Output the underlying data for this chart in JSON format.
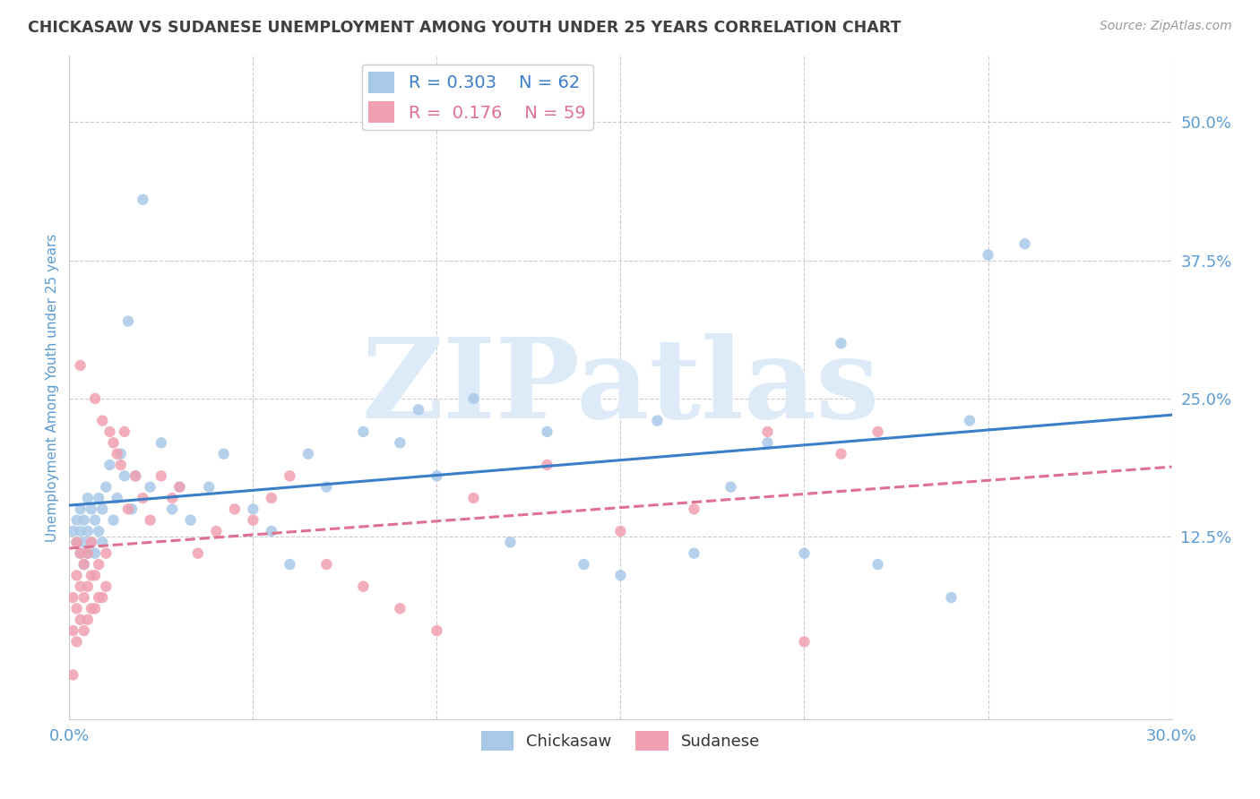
{
  "title": "CHICKASAW VS SUDANESE UNEMPLOYMENT AMONG YOUTH UNDER 25 YEARS CORRELATION CHART",
  "source": "Source: ZipAtlas.com",
  "ylabel": "Unemployment Among Youth under 25 years",
  "xlim": [
    0.0,
    0.3
  ],
  "ylim": [
    -0.04,
    0.56
  ],
  "yticks": [
    0.125,
    0.25,
    0.375,
    0.5
  ],
  "ytick_labels": [
    "12.5%",
    "25.0%",
    "37.5%",
    "50.0%"
  ],
  "xticks": [
    0.0,
    0.05,
    0.1,
    0.15,
    0.2,
    0.25,
    0.3
  ],
  "xtick_labels": [
    "0.0%",
    "",
    "",
    "",
    "",
    "",
    "30.0%"
  ],
  "legend_series": [
    {
      "label": "Chickasaw",
      "R": "0.303",
      "N": "62",
      "color": "#A8C8E8",
      "line_color": "#3A7DC9",
      "line_style": "-"
    },
    {
      "label": "Sudanese",
      "R": "0.176",
      "N": "59",
      "color": "#F0A0B0",
      "line_color": "#E07090",
      "line_style": "--"
    }
  ],
  "watermark": "ZIPatlas",
  "watermark_color": "#DDEAF8",
  "background_color": "#FFFFFF",
  "grid_color": "#CCCCCC",
  "axis_label_color": "#5B9BD5",
  "tick_label_color": "#5B9BD5",
  "title_color": "#404040",
  "chickasaw_x": [
    0.001,
    0.002,
    0.002,
    0.003,
    0.003,
    0.003,
    0.004,
    0.004,
    0.004,
    0.005,
    0.005,
    0.005,
    0.006,
    0.006,
    0.007,
    0.007,
    0.008,
    0.008,
    0.009,
    0.009,
    0.01,
    0.011,
    0.012,
    0.013,
    0.014,
    0.015,
    0.016,
    0.017,
    0.018,
    0.02,
    0.022,
    0.025,
    0.028,
    0.03,
    0.033,
    0.038,
    0.042,
    0.05,
    0.055,
    0.06,
    0.065,
    0.07,
    0.08,
    0.09,
    0.095,
    0.1,
    0.11,
    0.12,
    0.13,
    0.14,
    0.15,
    0.16,
    0.17,
    0.18,
    0.19,
    0.2,
    0.21,
    0.22,
    0.24,
    0.245,
    0.25,
    0.26
  ],
  "chickasaw_y": [
    0.13,
    0.12,
    0.14,
    0.11,
    0.13,
    0.15,
    0.1,
    0.12,
    0.14,
    0.11,
    0.13,
    0.16,
    0.12,
    0.15,
    0.11,
    0.14,
    0.13,
    0.16,
    0.12,
    0.15,
    0.17,
    0.19,
    0.14,
    0.16,
    0.2,
    0.18,
    0.32,
    0.15,
    0.18,
    0.43,
    0.17,
    0.21,
    0.15,
    0.17,
    0.14,
    0.17,
    0.2,
    0.15,
    0.13,
    0.1,
    0.2,
    0.17,
    0.22,
    0.21,
    0.24,
    0.18,
    0.25,
    0.12,
    0.22,
    0.1,
    0.09,
    0.23,
    0.11,
    0.17,
    0.21,
    0.11,
    0.3,
    0.1,
    0.07,
    0.23,
    0.38,
    0.39
  ],
  "sudanese_x": [
    0.001,
    0.001,
    0.001,
    0.002,
    0.002,
    0.002,
    0.002,
    0.003,
    0.003,
    0.003,
    0.003,
    0.004,
    0.004,
    0.004,
    0.005,
    0.005,
    0.005,
    0.006,
    0.006,
    0.006,
    0.007,
    0.007,
    0.007,
    0.008,
    0.008,
    0.009,
    0.009,
    0.01,
    0.01,
    0.011,
    0.012,
    0.013,
    0.014,
    0.015,
    0.016,
    0.018,
    0.02,
    0.022,
    0.025,
    0.028,
    0.03,
    0.035,
    0.04,
    0.045,
    0.05,
    0.055,
    0.06,
    0.07,
    0.08,
    0.09,
    0.1,
    0.11,
    0.13,
    0.15,
    0.17,
    0.19,
    0.2,
    0.21,
    0.22
  ],
  "sudanese_y": [
    0.0,
    0.04,
    0.07,
    0.03,
    0.06,
    0.09,
    0.12,
    0.05,
    0.08,
    0.11,
    0.28,
    0.04,
    0.07,
    0.1,
    0.05,
    0.08,
    0.11,
    0.06,
    0.09,
    0.12,
    0.06,
    0.09,
    0.25,
    0.07,
    0.1,
    0.07,
    0.23,
    0.08,
    0.11,
    0.22,
    0.21,
    0.2,
    0.19,
    0.22,
    0.15,
    0.18,
    0.16,
    0.14,
    0.18,
    0.16,
    0.17,
    0.11,
    0.13,
    0.15,
    0.14,
    0.16,
    0.18,
    0.1,
    0.08,
    0.06,
    0.04,
    0.16,
    0.19,
    0.13,
    0.15,
    0.22,
    0.03,
    0.2,
    0.22
  ]
}
